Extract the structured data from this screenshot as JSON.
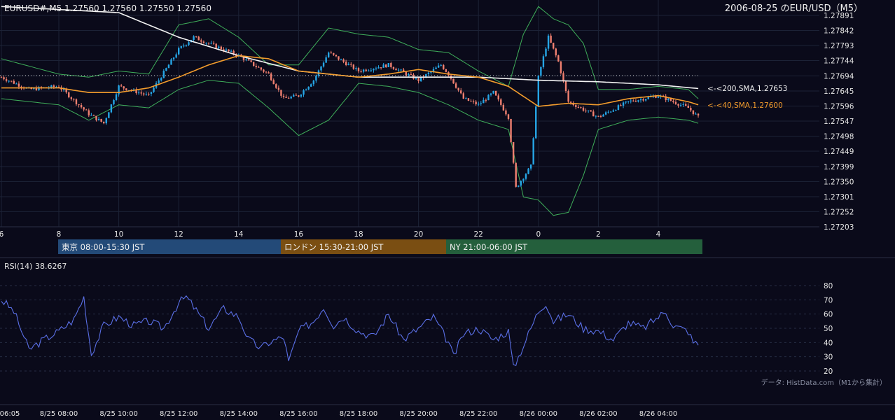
{
  "header": {
    "symbol_ohlc": "EURUSD#,M5 1.27560 1.27560 1.27550 1.27560",
    "date_title": "2006-08-25 のEUR/USD（M5）"
  },
  "main_axis": {
    "y_ticks": [
      "1.27891",
      "1.27842",
      "1.27793",
      "1.27744",
      "1.27694",
      "1.27645",
      "1.27596",
      "1.27547",
      "1.27498",
      "1.27449",
      "1.27399",
      "1.27350",
      "1.27301",
      "1.27252",
      "1.27203"
    ],
    "x_ticks": [
      "6",
      "8",
      "10",
      "12",
      "14",
      "16",
      "18",
      "20",
      "22",
      "0",
      "2",
      "4"
    ]
  },
  "ma_labels": {
    "sma200": "<-<200,SMA,1.27653",
    "sma40": "<-<40,SMA,1.27600"
  },
  "sessions": [
    {
      "label": "東京 08:00-15:30 JST",
      "color": "#234a78"
    },
    {
      "label": "ロンドン 15:30-21:00 JST",
      "color": "#7a4e12"
    },
    {
      "label": "NY 21:00-06:00 JST",
      "color": "#245f3c"
    }
  ],
  "rsi": {
    "label": "RSI(14) 38.6267",
    "y_ticks": [
      "80",
      "70",
      "60",
      "50",
      "40",
      "30",
      "20"
    ]
  },
  "source_note": "データ: HistData.com（M1から集計）",
  "bottom_axis": {
    "ticks": [
      "06:05",
      "8/25 08:00",
      "8/25 10:00",
      "8/25 12:00",
      "8/25 14:00",
      "8/25 16:00",
      "8/25 18:00",
      "8/25 20:00",
      "8/25 22:00",
      "8/26 00:00",
      "8/26 02:00",
      "8/26 04:00"
    ]
  },
  "colors": {
    "background": "#0a0a1a",
    "bull": "#26a6e6",
    "bear": "#f08070",
    "sma40": "#f39c2c",
    "sma200": "#f2f2f2",
    "bollinger": "#3fae5a",
    "rsi": "#5a6fe6"
  },
  "chart_data": [
    {
      "type": "candlestick",
      "symbol": "EURUSD#",
      "timeframe": "M5",
      "ylim": [
        1.27203,
        1.27891
      ],
      "grid": true,
      "series": [
        {
          "name": "200,SMA",
          "last": 1.27653
        },
        {
          "name": "40,SMA",
          "last": 1.276
        }
      ],
      "price_path": {
        "times": [
          "06:05",
          "07:00",
          "08:00",
          "09:00",
          "09:30",
          "10:00",
          "11:00",
          "12:00",
          "12:30",
          "13:00",
          "14:00",
          "15:00",
          "15:30",
          "16:00",
          "16:30",
          "17:00",
          "18:00",
          "19:00",
          "20:00",
          "20:45",
          "21:00",
          "21:30",
          "22:00",
          "22:30",
          "23:00",
          "23:15",
          "23:45",
          "00:00",
          "00:20",
          "00:40",
          "01:00",
          "02:00",
          "03:00",
          "04:00",
          "05:00",
          "05:20"
        ],
        "close": [
          1.2769,
          1.2765,
          1.2766,
          1.2757,
          1.2754,
          1.2766,
          1.2763,
          1.2778,
          1.2782,
          1.278,
          1.2776,
          1.277,
          1.2762,
          1.2763,
          1.2768,
          1.2777,
          1.2771,
          1.2773,
          1.2768,
          1.2773,
          1.277,
          1.2762,
          1.276,
          1.2764,
          1.2756,
          1.2733,
          1.274,
          1.2769,
          1.2782,
          1.2774,
          1.2761,
          1.2756,
          1.2761,
          1.2763,
          1.2759,
          1.2756
        ],
        "high": [
          1.2771,
          1.2768,
          1.2768,
          1.2767,
          1.2765,
          1.2772,
          1.2771,
          1.2782,
          1.2784,
          1.2782,
          1.278,
          1.2775,
          1.2768,
          1.2765,
          1.2778,
          1.278,
          1.2779,
          1.2776,
          1.2775,
          1.2774,
          1.2772,
          1.2768,
          1.2765,
          1.2766,
          1.2763,
          1.274,
          1.2755,
          1.2788,
          1.2785,
          1.2779,
          1.2765,
          1.2762,
          1.2764,
          1.2766,
          1.2763,
          1.2759
        ],
        "low": [
          1.2767,
          1.2762,
          1.2764,
          1.275,
          1.2752,
          1.2761,
          1.276,
          1.277,
          1.2776,
          1.2777,
          1.2771,
          1.2761,
          1.2751,
          1.2756,
          1.2762,
          1.277,
          1.2767,
          1.2768,
          1.2766,
          1.2766,
          1.2766,
          1.2754,
          1.2758,
          1.276,
          1.275,
          1.2731,
          1.2734,
          1.2755,
          1.2776,
          1.277,
          1.2756,
          1.2754,
          1.2757,
          1.2759,
          1.2756,
          1.2754
        ]
      },
      "bollinger": {
        "times": [
          "06:05",
          "08:00",
          "09:00",
          "10:00",
          "11:00",
          "12:00",
          "13:00",
          "14:00",
          "15:00",
          "16:00",
          "17:00",
          "18:00",
          "19:00",
          "20:00",
          "21:00",
          "22:00",
          "23:00",
          "23:30",
          "00:00",
          "00:30",
          "01:00",
          "01:30",
          "02:00",
          "03:00",
          "04:00",
          "05:00",
          "05:20"
        ],
        "upper": [
          1.2775,
          1.277,
          1.2769,
          1.2771,
          1.277,
          1.2786,
          1.2788,
          1.2782,
          1.2773,
          1.2773,
          1.2785,
          1.2783,
          1.2782,
          1.2778,
          1.2777,
          1.2771,
          1.2766,
          1.2783,
          1.2792,
          1.2788,
          1.2786,
          1.278,
          1.2765,
          1.2765,
          1.2766,
          1.2765,
          1.2762
        ],
        "lower": [
          1.2762,
          1.276,
          1.2755,
          1.276,
          1.2759,
          1.2765,
          1.2768,
          1.2767,
          1.2759,
          1.275,
          1.2755,
          1.2767,
          1.2766,
          1.2764,
          1.276,
          1.2755,
          1.2752,
          1.273,
          1.2729,
          1.2724,
          1.2725,
          1.2737,
          1.2752,
          1.2755,
          1.2756,
          1.2755,
          1.2754
        ]
      },
      "sma40": {
        "times": [
          "06:05",
          "08:00",
          "09:00",
          "10:00",
          "11:00",
          "12:00",
          "13:00",
          "14:00",
          "15:00",
          "16:00",
          "17:00",
          "18:00",
          "19:00",
          "20:00",
          "21:00",
          "22:00",
          "23:00",
          "00:00",
          "01:00",
          "02:00",
          "03:00",
          "04:00",
          "05:00",
          "05:20"
        ],
        "values": [
          1.27655,
          1.27655,
          1.2764,
          1.2764,
          1.27655,
          1.2769,
          1.2773,
          1.2776,
          1.2775,
          1.2771,
          1.277,
          1.2769,
          1.277,
          1.27715,
          1.277,
          1.2769,
          1.2766,
          1.27595,
          1.27605,
          1.276,
          1.2762,
          1.2763,
          1.2761,
          1.276
        ],
        "last": 1.276
      },
      "sma200": {
        "times": [
          "06:05",
          "10:00",
          "12:00",
          "14:00",
          "16:00",
          "18:00",
          "20:00",
          "22:00",
          "00:00",
          "02:00",
          "04:00",
          "05:20"
        ],
        "values": [
          1.2792,
          1.279,
          1.2782,
          1.2776,
          1.2771,
          1.2769,
          1.2769,
          1.2769,
          1.2768,
          1.27675,
          1.27665,
          1.27653
        ],
        "last": 1.27653
      }
    },
    {
      "type": "line",
      "title": "RSI(14) 38.6267",
      "ylim": [
        15,
        85
      ],
      "series": [
        {
          "times": [
            "06:05",
            "06:30",
            "07:00",
            "07:30",
            "08:00",
            "08:30",
            "08:50",
            "09:05",
            "09:30",
            "10:00",
            "10:30",
            "11:00",
            "11:30",
            "12:00",
            "12:15",
            "12:30",
            "13:00",
            "13:30",
            "14:00",
            "14:20",
            "14:45",
            "15:00",
            "15:30",
            "15:40",
            "16:00",
            "16:30",
            "16:50",
            "17:10",
            "17:30",
            "18:00",
            "18:30",
            "19:00",
            "19:30",
            "20:00",
            "20:30",
            "21:00",
            "21:10",
            "21:30",
            "22:00",
            "22:30",
            "23:00",
            "23:10",
            "23:30",
            "00:00",
            "00:15",
            "00:30",
            "01:00",
            "01:30",
            "02:00",
            "02:30",
            "03:00",
            "03:30",
            "04:00",
            "04:15",
            "04:30",
            "05:00",
            "05:10",
            "05:20"
          ],
          "values": [
            70,
            62,
            35,
            42,
            48,
            56,
            72,
            32,
            52,
            58,
            52,
            55,
            50,
            68,
            72,
            65,
            50,
            64,
            58,
            42,
            36,
            40,
            44,
            26,
            48,
            55,
            65,
            52,
            58,
            48,
            44,
            60,
            42,
            50,
            58,
            40,
            30,
            46,
            50,
            42,
            48,
            22,
            38,
            62,
            68,
            55,
            60,
            50,
            48,
            42,
            54,
            50,
            58,
            62,
            52,
            48,
            40,
            39
          ]
        }
      ]
    }
  ]
}
